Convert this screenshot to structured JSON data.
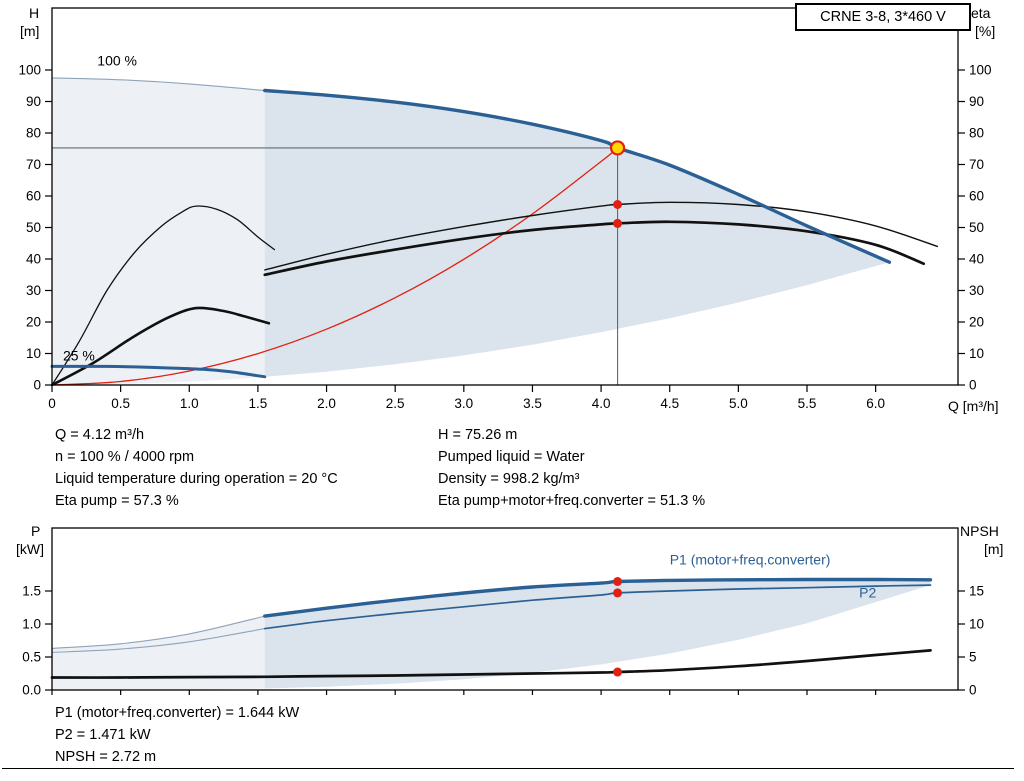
{
  "title_box": "CRNE 3-8, 3*460 V",
  "colors": {
    "blue": "#2b6095",
    "black": "#111111",
    "red": "#e02010",
    "yellow": "#ffd800",
    "envelope": "#dbe3ec",
    "envelope_light_overlay": "rgba(255,255,255,0.5)",
    "thin_line": "#8fa3b8",
    "crosshair": "#5f6b76",
    "frame": "#000000"
  },
  "info_top": {
    "left": [
      "Q = 4.12 m³/h",
      "n = 100 % / 4000 rpm",
      "Liquid temperature during operation = 20 °C",
      "Eta pump = 57.3 %"
    ],
    "right": [
      "H = 75.26 m",
      "Pumped liquid = Water",
      "Density = 998.2 kg/m³",
      "Eta pump+motor+freq.converter = 51.3 %"
    ]
  },
  "info_bottom": [
    "P1 (motor+freq.converter) = 1.644 kW",
    "P2 = 1.471 kW",
    "NPSH = 2.72 m"
  ],
  "chart_data": [
    {
      "type": "line",
      "title": "CRNE 3-8, 3*460 V",
      "xlabel": "Q [m³/h]",
      "ylabel_left_lines": [
        "H",
        "[m]"
      ],
      "ylabel_right_lines": [
        "eta",
        "[%]"
      ],
      "xlim": [
        0,
        6.6
      ],
      "ylim_left": [
        0,
        119
      ],
      "ylim_right": [
        0,
        119
      ],
      "grid": false,
      "x_ticks": [
        "0",
        "0.5",
        "1.0",
        "1.5",
        "2.0",
        "2.5",
        "3.0",
        "3.5",
        "4.0",
        "4.5",
        "5.0",
        "5.5",
        "6.0"
      ],
      "y_ticks_left": [
        0,
        10,
        20,
        30,
        40,
        50,
        60,
        70,
        80,
        90,
        100
      ],
      "y_ticks_right": [
        0,
        10,
        20,
        30,
        40,
        50,
        60,
        70,
        80,
        90,
        100
      ],
      "series": [
        {
          "name": "pump_max_ext",
          "label": "head curve 100 % (low-flow extension)",
          "axis": "left",
          "x": [
            0,
            0.5,
            1.0,
            1.55
          ],
          "y": [
            97.5,
            96.9,
            95.6,
            93.5
          ]
        },
        {
          "name": "system",
          "label": "system curve",
          "axis": "left",
          "x": [
            0,
            0.5,
            1.0,
            1.5,
            2.0,
            2.5,
            3.0,
            3.5,
            4.0,
            4.12
          ],
          "y": [
            0,
            1.11,
            4.43,
            9.98,
            17.73,
            27.71,
            39.9,
            54.31,
            70.94,
            75.26
          ]
        },
        {
          "name": "eta_pump_25",
          "label": "eta pump at 25 %",
          "axis": "right",
          "x": [
            0,
            0.2,
            0.4,
            0.6,
            0.8,
            0.95,
            1.05,
            1.2,
            1.35,
            1.5,
            1.62
          ],
          "y": [
            0,
            14,
            30,
            42,
            50.5,
            55,
            56.8,
            55.8,
            52.5,
            47,
            43
          ]
        },
        {
          "name": "eta_total_25",
          "label": "eta pump+motor+freq.converter at 25 %",
          "axis": "right",
          "x": [
            0,
            0.3,
            0.6,
            0.85,
            1.05,
            1.25,
            1.4,
            1.58
          ],
          "y": [
            0,
            7,
            15.5,
            21.5,
            24.4,
            23.5,
            21.8,
            19.6
          ]
        },
        {
          "name": "eta_pump",
          "label": "eta pump",
          "axis": "right",
          "x": [
            1.55,
            2.0,
            2.5,
            3.0,
            3.5,
            4.0,
            4.12,
            4.5,
            5.0,
            5.5,
            6.0,
            6.45
          ],
          "y": [
            36.5,
            41.5,
            46.3,
            50.3,
            53.8,
            56.8,
            57.3,
            58.0,
            57.3,
            55.0,
            50.5,
            44.0
          ]
        },
        {
          "name": "eta_total",
          "label": "eta pump+motor+freq.converter",
          "axis": "right",
          "x": [
            1.55,
            2.0,
            2.5,
            3.0,
            3.5,
            4.0,
            4.12,
            4.5,
            5.0,
            5.5,
            6.0,
            6.35
          ],
          "y": [
            35.0,
            39.2,
            43.0,
            46.4,
            49.2,
            51.0,
            51.3,
            51.8,
            51.0,
            48.8,
            44.5,
            38.5
          ]
        },
        {
          "name": "pump_min",
          "label": "head curve 25 %",
          "axis": "left",
          "x": [
            0,
            0.4,
            0.8,
            1.1,
            1.3,
            1.55
          ],
          "y": [
            5.9,
            5.9,
            5.5,
            5.0,
            4.2,
            2.6
          ]
        },
        {
          "name": "pump_max",
          "label": "head curve 100 %",
          "axis": "left",
          "x": [
            1.55,
            2.0,
            2.5,
            3.0,
            3.5,
            4.0,
            4.12,
            4.5,
            5.0,
            5.5,
            6.1
          ],
          "y": [
            93.5,
            92.0,
            89.8,
            86.8,
            82.8,
            77.6,
            75.26,
            69.8,
            60.5,
            50.5,
            39.0
          ]
        }
      ],
      "envelope": {
        "x": [
          6.1,
          5.5,
          5.0,
          4.5,
          4.0,
          3.5,
          3.0,
          2.5,
          2.0,
          1.55,
          1.2,
          0.8,
          0.4,
          0
        ],
        "y": [
          39.0,
          31.7,
          26.2,
          21.2,
          16.8,
          12.8,
          9.4,
          6.6,
          4.2,
          2.6,
          1.5,
          0.7,
          0.2,
          0
        ]
      },
      "operating_point": {
        "q": 4.12,
        "h": 75.26
      },
      "marked_points": [
        {
          "q": 4.12,
          "eta": 57.3
        },
        {
          "q": 4.12,
          "eta": 51.3
        }
      ],
      "annotations": [
        {
          "text": "100 %",
          "q": 0.33,
          "v": 101.5,
          "color": "#000000"
        },
        {
          "text": "25 %",
          "q": 0.08,
          "v": 7.8,
          "color": "#000000"
        }
      ]
    },
    {
      "type": "line",
      "title": "",
      "xlabel": "",
      "ylabel_left_lines": [
        "P",
        "[kW]"
      ],
      "ylabel_right_lines": [
        "NPSH",
        "[m]"
      ],
      "xlim": [
        0,
        6.6
      ],
      "ylim_left": [
        0,
        2.45
      ],
      "ylim_right": [
        0,
        24.5
      ],
      "grid": false,
      "x_ticks": [
        "0",
        "0.5",
        "1.0",
        "1.5",
        "2.0",
        "2.5",
        "3.0",
        "3.5",
        "4.0",
        "4.5",
        "5.0",
        "5.5",
        "6.0"
      ],
      "x_tick_labels_visible": false,
      "y_ticks_left": [
        "0.0",
        "0.5",
        "1.0",
        "1.5"
      ],
      "y_ticks_right": [
        0,
        5,
        10,
        15
      ],
      "series": [
        {
          "name": "p1_ext",
          "label": "P1 low-flow extension",
          "axis": "left",
          "x": [
            0,
            0.5,
            1.0,
            1.55
          ],
          "y": [
            0.63,
            0.7,
            0.85,
            1.12
          ]
        },
        {
          "name": "p2_ext",
          "label": "P2 low-flow extension",
          "axis": "left",
          "x": [
            0,
            0.5,
            1.0,
            1.55
          ],
          "y": [
            0.57,
            0.62,
            0.73,
            0.93
          ]
        },
        {
          "name": "p2",
          "label": "P2",
          "axis": "left",
          "x": [
            1.55,
            2.0,
            2.5,
            3.0,
            3.5,
            4.0,
            4.12,
            4.5,
            5.0,
            5.5,
            6.0,
            6.4
          ],
          "y": [
            0.93,
            1.05,
            1.16,
            1.26,
            1.36,
            1.44,
            1.471,
            1.5,
            1.53,
            1.55,
            1.575,
            1.59
          ]
        },
        {
          "name": "p1",
          "label": "P1 (motor+freq.converter)",
          "axis": "left",
          "x": [
            1.55,
            2.0,
            2.5,
            3.0,
            3.5,
            4.0,
            4.12,
            4.5,
            5.0,
            5.5,
            6.0,
            6.4
          ],
          "y": [
            1.12,
            1.24,
            1.36,
            1.47,
            1.56,
            1.62,
            1.644,
            1.66,
            1.67,
            1.675,
            1.675,
            1.67
          ]
        },
        {
          "name": "npsh",
          "label": "NPSH",
          "axis": "right",
          "x": [
            0,
            0.5,
            1.0,
            1.55,
            2.0,
            2.5,
            3.0,
            3.5,
            4.0,
            4.12,
            4.5,
            5.0,
            5.5,
            6.0,
            6.4
          ],
          "y": [
            1.9,
            1.9,
            1.95,
            2.0,
            2.1,
            2.2,
            2.35,
            2.5,
            2.65,
            2.72,
            3.0,
            3.6,
            4.4,
            5.3,
            6.0
          ]
        }
      ],
      "envelope": {
        "x": [
          6.4,
          5.5,
          5.0,
          4.5,
          4.0,
          3.5,
          3.0,
          2.5,
          2.0,
          1.55,
          1.0,
          0.5,
          0
        ],
        "y": [
          1.59,
          1.01,
          0.76,
          0.553,
          0.388,
          0.26,
          0.164,
          0.095,
          0.049,
          0.023,
          0.006,
          0.001,
          0
        ]
      },
      "marked_points": [
        {
          "q": 4.12,
          "p": 1.644
        },
        {
          "q": 4.12,
          "p": 1.471
        },
        {
          "q": 4.12,
          "npsh": 2.72
        }
      ],
      "annotations": [
        {
          "text": "P1 (motor+freq.converter)",
          "q": 4.5,
          "v": 1.9,
          "color": "#2b6095"
        },
        {
          "text": "P2",
          "q": 5.88,
          "v": 1.4,
          "color": "#2b6095"
        }
      ]
    }
  ]
}
